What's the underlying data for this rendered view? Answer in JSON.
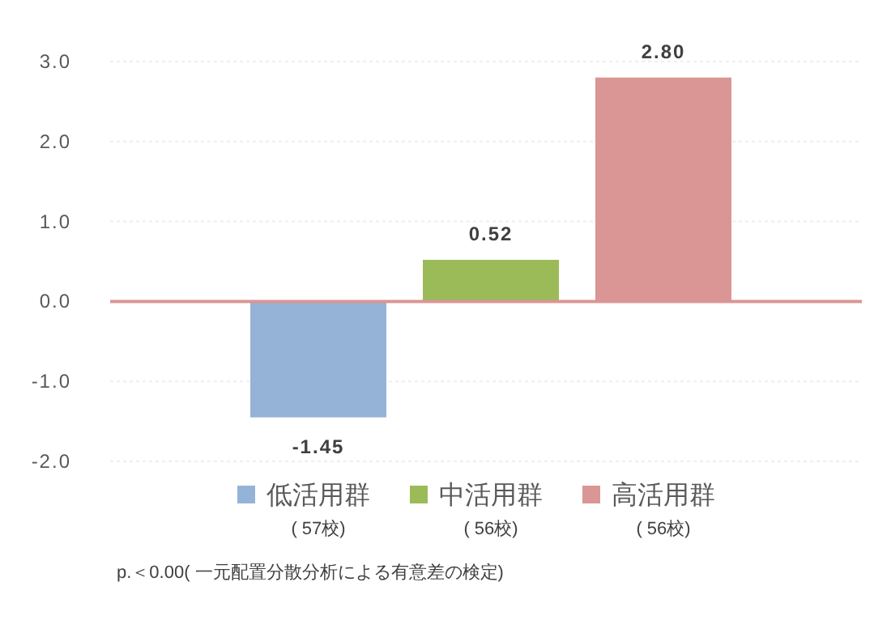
{
  "chart_data": {
    "type": "bar",
    "categories": [
      null,
      null,
      null
    ],
    "series": [
      {
        "name": "低活用群",
        "color": "#95b3d7",
        "values": [
          -1.45,
          null,
          null
        ],
        "value_labels": [
          "-1.45",
          null,
          null
        ]
      },
      {
        "name": "中活用群",
        "color": "#9bbb59",
        "values": [
          null,
          0.52,
          null
        ],
        "value_labels": [
          null,
          "0.52",
          null
        ]
      },
      {
        "name": "高活用群",
        "color": "#d99694",
        "values": [
          null,
          null,
          2.8
        ],
        "value_labels": [
          null,
          null,
          "2.80"
        ]
      }
    ],
    "ylim": [
      -2.0,
      3.0
    ],
    "yticks": [
      {
        "value": -2,
        "label": "-2.0"
      },
      {
        "value": -1,
        "label": "-1.0"
      },
      {
        "value": 0,
        "label": "0.0"
      },
      {
        "value": 1,
        "label": "1.0"
      },
      {
        "value": 2,
        "label": "2.0"
      },
      {
        "value": 3,
        "label": "3.0"
      }
    ],
    "grid": "y",
    "legend": "bottom",
    "ref_lines": [
      {
        "axis": "y",
        "value": 0,
        "color": "#d99694"
      }
    ],
    "annotations": [
      "( 57校)",
      "( 56校)",
      "( 56校)",
      "p.＜0.00( 一元配置分散分析による有意差の検定)"
    ]
  }
}
